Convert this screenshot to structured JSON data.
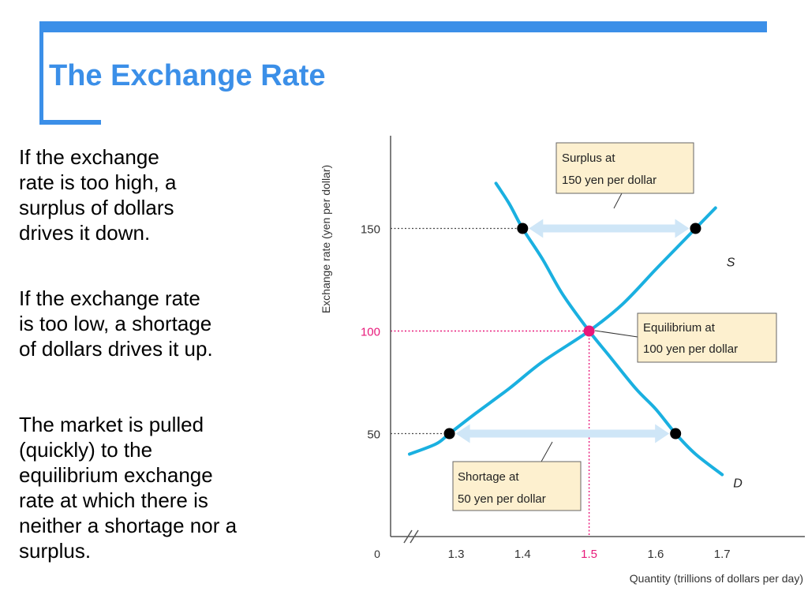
{
  "slide": {
    "title": "The Exchange Rate",
    "paragraphs": [
      "If the exchange\nrate is too high, a\nsurplus of dollars\ndrives it down.",
      "If the exchange rate\nis too low, a shortage\nof dollars drives it up.",
      "The market is pulled\n(quickly) to the\nequilibrium exchange\nrate at which there is\nneither a shortage nor a\nsurplus."
    ]
  },
  "colors": {
    "accent": "#3b8fe8",
    "curve": "#1ab0e0",
    "equilibrium": "#e8197a",
    "arrow": "#cfe6f7",
    "callout_bg": "#fdf0cf",
    "axis": "#555555"
  },
  "chart_data": {
    "type": "line",
    "ylabel": "Exchange rate (yen per dollar)",
    "xlabel": "Quantity (trillions of dollars per day)",
    "origin_label": "0",
    "axis_break": true,
    "x_ticks": [
      1.3,
      1.4,
      1.5,
      1.6,
      1.7
    ],
    "x_tick_labels": [
      "1.3",
      "1.4",
      "1.5",
      "1.6",
      "1.7"
    ],
    "y_ticks": [
      50,
      100,
      150
    ],
    "y_tick_labels": [
      "50",
      "100",
      "150"
    ],
    "highlight_x_tick": "1.5",
    "highlight_y_tick": "100",
    "xlim": [
      1.2,
      1.8
    ],
    "ylim": [
      0,
      180
    ],
    "series": [
      {
        "name": "S",
        "points": [
          [
            1.23,
            40
          ],
          [
            1.27,
            45
          ],
          [
            1.29,
            50
          ],
          [
            1.33,
            60
          ],
          [
            1.38,
            72
          ],
          [
            1.43,
            85
          ],
          [
            1.5,
            100
          ],
          [
            1.55,
            113
          ],
          [
            1.6,
            130
          ],
          [
            1.63,
            140
          ],
          [
            1.66,
            150
          ],
          [
            1.69,
            160
          ]
        ]
      },
      {
        "name": "D",
        "points": [
          [
            1.36,
            172
          ],
          [
            1.38,
            162
          ],
          [
            1.4,
            150
          ],
          [
            1.43,
            135
          ],
          [
            1.46,
            118
          ],
          [
            1.5,
            100
          ],
          [
            1.53,
            88
          ],
          [
            1.57,
            72
          ],
          [
            1.6,
            62
          ],
          [
            1.63,
            50
          ],
          [
            1.66,
            40
          ],
          [
            1.7,
            30
          ]
        ]
      }
    ],
    "key_points": [
      {
        "x": 1.4,
        "y": 150,
        "kind": "demand-at-150"
      },
      {
        "x": 1.66,
        "y": 150,
        "kind": "supply-at-150"
      },
      {
        "x": 1.5,
        "y": 100,
        "kind": "equilibrium"
      },
      {
        "x": 1.29,
        "y": 50,
        "kind": "supply-at-50"
      },
      {
        "x": 1.63,
        "y": 50,
        "kind": "demand-at-50"
      }
    ],
    "annotations": {
      "surplus": [
        "Surplus at",
        "150 yen per dollar"
      ],
      "equilibrium": [
        "Equilibrium at",
        "100 yen per dollar"
      ],
      "shortage": [
        "Shortage at",
        "50 yen per dollar"
      ]
    }
  }
}
